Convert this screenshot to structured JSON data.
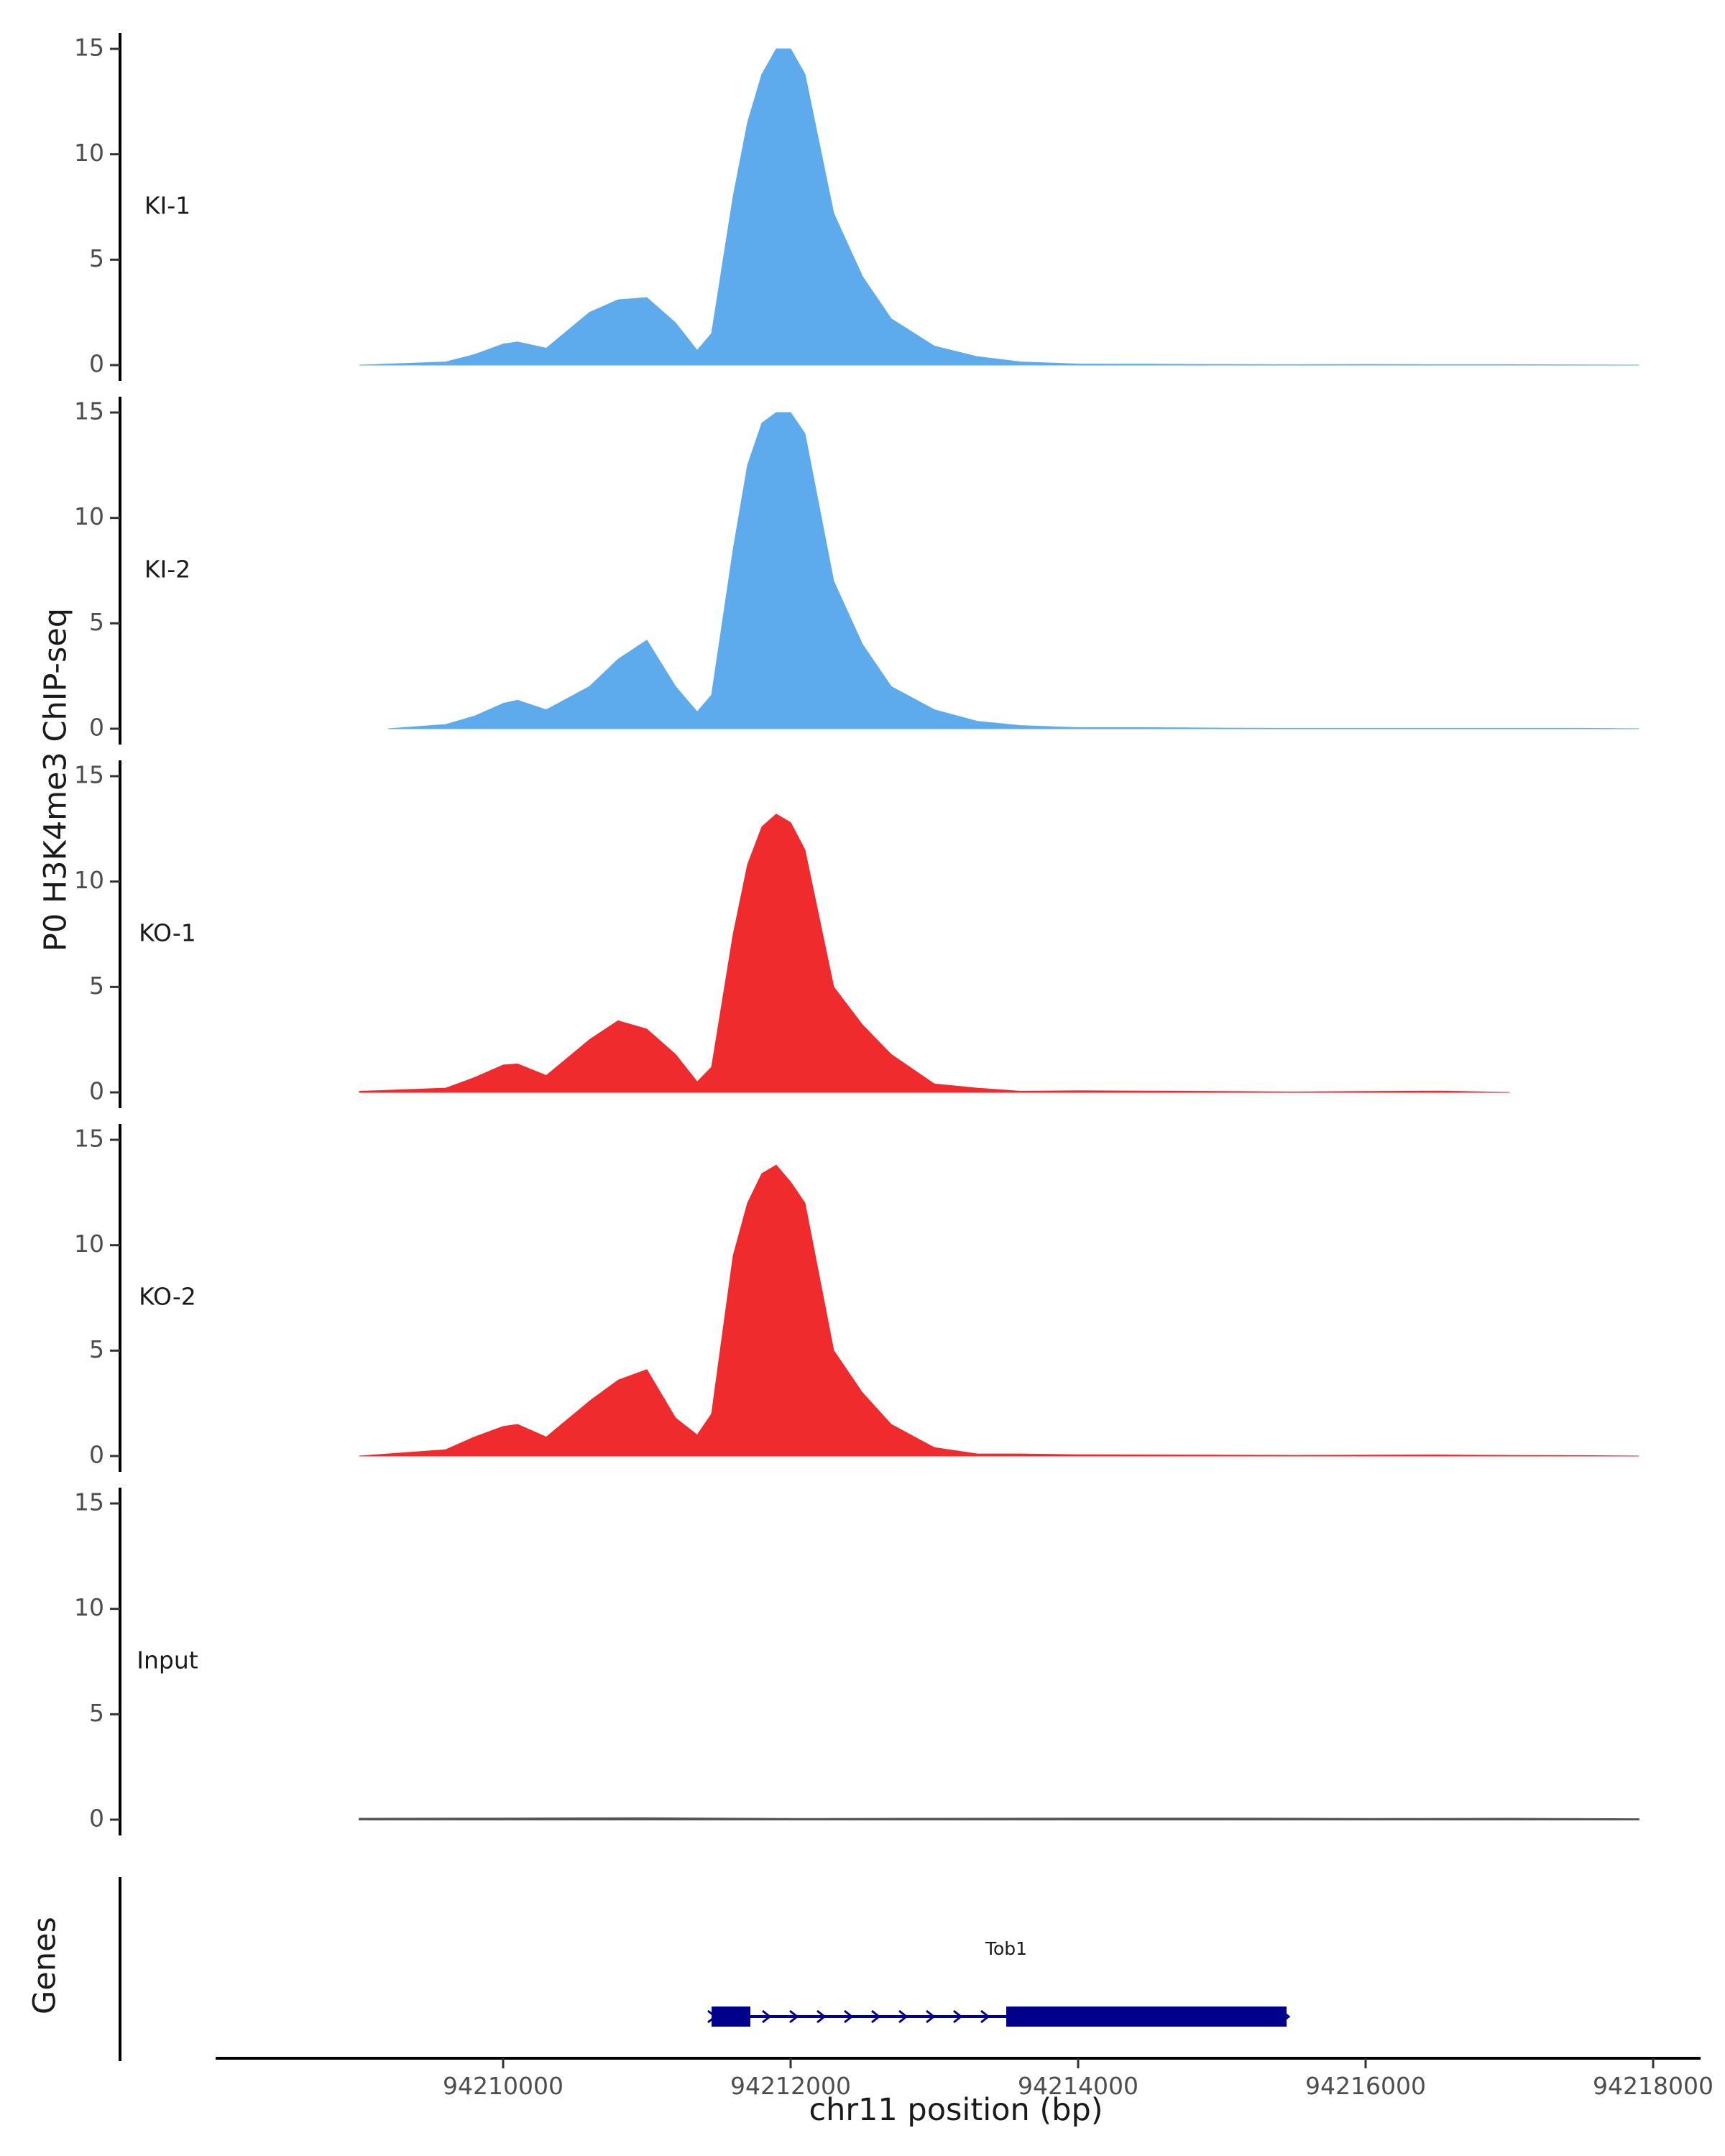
{
  "chart_data": {
    "type": "area",
    "ylabel": "P0 H3K4me3 ChIP-seq",
    "xlabel": "chr11 position (bp)",
    "genes_label": "Genes",
    "xlim": [
      94208000,
      94218300
    ],
    "ylim": [
      0,
      15
    ],
    "yticks": [
      0,
      5,
      10,
      15
    ],
    "xticks": [
      94210000,
      94212000,
      94214000,
      94216000,
      94218000
    ],
    "xtick_labels": [
      "94210000",
      "94212000",
      "94214000",
      "94216000",
      "94218000"
    ],
    "ytick_labels": [
      "0",
      "5",
      "10",
      "15"
    ],
    "colors": {
      "KI": "#5dabec",
      "KO": "#ef2b2d",
      "Input": "#555555",
      "gene": "#00008b"
    },
    "tracks": [
      {
        "label": "KI-1",
        "color": "#5dabec",
        "x": [
          94209000,
          94209600,
          94209800,
          94210000,
          94210100,
          94210300,
          94210600,
          94210800,
          94211000,
          94211200,
          94211350,
          94211450,
          94211600,
          94211700,
          94211800,
          94211900,
          94212000,
          94212100,
          94212300,
          94212500,
          94212700,
          94213000,
          94213300,
          94213600,
          94214000,
          94214500,
          94215000,
          94215500,
          94216000,
          94216500,
          94217000,
          94217500,
          94217900
        ],
        "y": [
          0,
          0.15,
          0.5,
          1.0,
          1.1,
          0.8,
          2.5,
          3.1,
          3.2,
          2.0,
          0.7,
          1.5,
          8.0,
          11.5,
          13.8,
          15.0,
          15.0,
          13.8,
          7.2,
          4.2,
          2.2,
          0.9,
          0.4,
          0.15,
          0.05,
          0.04,
          0.03,
          0.02,
          0.03,
          0.02,
          0.02,
          0.01,
          0
        ]
      },
      {
        "label": "KI-2",
        "color": "#5dabec",
        "x": [
          94209200,
          94209600,
          94209800,
          94210000,
          94210100,
          94210300,
          94210600,
          94210800,
          94211000,
          94211200,
          94211350,
          94211450,
          94211600,
          94211700,
          94211800,
          94211900,
          94212000,
          94212100,
          94212300,
          94212500,
          94212700,
          94213000,
          94213300,
          94213600,
          94214000,
          94214500,
          94215000,
          94215500,
          94216000,
          94216500,
          94217000,
          94217500,
          94217900
        ],
        "y": [
          0,
          0.2,
          0.6,
          1.2,
          1.35,
          0.9,
          2.0,
          3.3,
          4.2,
          2.0,
          0.8,
          1.6,
          8.5,
          12.5,
          14.5,
          15.0,
          15.0,
          14.0,
          7.0,
          4.0,
          2.0,
          0.9,
          0.35,
          0.15,
          0.05,
          0.05,
          0.03,
          0.02,
          0.02,
          0.02,
          0.02,
          0.02,
          0
        ]
      },
      {
        "label": "KO-1",
        "color": "#ef2b2d",
        "x": [
          94209000,
          94209600,
          94209800,
          94210000,
          94210100,
          94210300,
          94210600,
          94210800,
          94211000,
          94211200,
          94211350,
          94211450,
          94211600,
          94211700,
          94211800,
          94211900,
          94212000,
          94212100,
          94212300,
          94212500,
          94212700,
          94213000,
          94213300,
          94213600,
          94214000,
          94214500,
          94215000,
          94215500,
          94216000,
          94216500,
          94217000
        ],
        "y": [
          0.05,
          0.2,
          0.7,
          1.3,
          1.35,
          0.8,
          2.5,
          3.4,
          3.0,
          1.8,
          0.5,
          1.2,
          7.5,
          10.8,
          12.6,
          13.2,
          12.8,
          11.5,
          5.0,
          3.2,
          1.8,
          0.4,
          0.2,
          0.05,
          0.08,
          0.06,
          0.04,
          0.02,
          0.04,
          0.06,
          0
        ]
      },
      {
        "label": "KO-2",
        "color": "#ef2b2d",
        "x": [
          94209000,
          94209600,
          94209800,
          94210000,
          94210100,
          94210300,
          94210600,
          94210800,
          94211000,
          94211200,
          94211350,
          94211450,
          94211600,
          94211700,
          94211800,
          94211900,
          94212000,
          94212100,
          94212300,
          94212500,
          94212700,
          94213000,
          94213300,
          94213600,
          94214000,
          94214500,
          94215000,
          94215500,
          94216000,
          94216500,
          94217000,
          94217500,
          94217900
        ],
        "y": [
          0,
          0.3,
          0.9,
          1.4,
          1.5,
          0.9,
          2.6,
          3.6,
          4.1,
          1.8,
          1.0,
          2.0,
          9.5,
          12.0,
          13.4,
          13.8,
          13.0,
          12.0,
          5.0,
          3.0,
          1.5,
          0.4,
          0.1,
          0.1,
          0.06,
          0.05,
          0.04,
          0.03,
          0.04,
          0.05,
          0.03,
          0.02,
          0
        ]
      },
      {
        "label": "Input",
        "color": "#555555",
        "x": [
          94209000,
          94210000,
          94211000,
          94212000,
          94213000,
          94214000,
          94215000,
          94216000,
          94217000,
          94217900
        ],
        "y": [
          0.05,
          0.06,
          0.08,
          0.04,
          0.05,
          0.06,
          0.06,
          0.04,
          0.05,
          0.03
        ]
      }
    ],
    "genes": [
      {
        "name": "Tob1",
        "start": 94211450,
        "end": 94215450,
        "strand": "+",
        "exons": [
          [
            94211450,
            94211720
          ],
          [
            94213500,
            94215450
          ]
        ]
      }
    ]
  }
}
